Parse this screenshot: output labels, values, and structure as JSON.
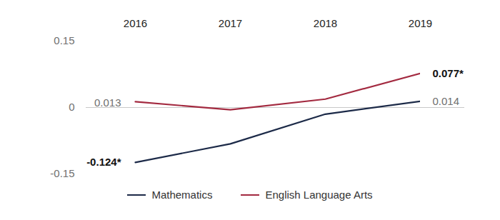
{
  "chart_data": {
    "type": "line",
    "categories": [
      "2016",
      "2017",
      "2018",
      "2019"
    ],
    "series": [
      {
        "name": "Mathematics",
        "color": "#1c2a48",
        "values": [
          -0.124,
          -0.082,
          -0.015,
          0.014
        ],
        "value_labels": [
          "-0.124*",
          null,
          null,
          "0.014"
        ]
      },
      {
        "name": "English Language Arts",
        "color": "#a32a40",
        "values": [
          0.013,
          -0.005,
          0.019,
          0.077
        ],
        "value_labels": [
          "0.013",
          null,
          null,
          "0.077*"
        ]
      }
    ],
    "ylim": [
      -0.15,
      0.15
    ],
    "yticks": [
      -0.15,
      0,
      0.15
    ],
    "data_labels": true,
    "legend": "bottom"
  }
}
